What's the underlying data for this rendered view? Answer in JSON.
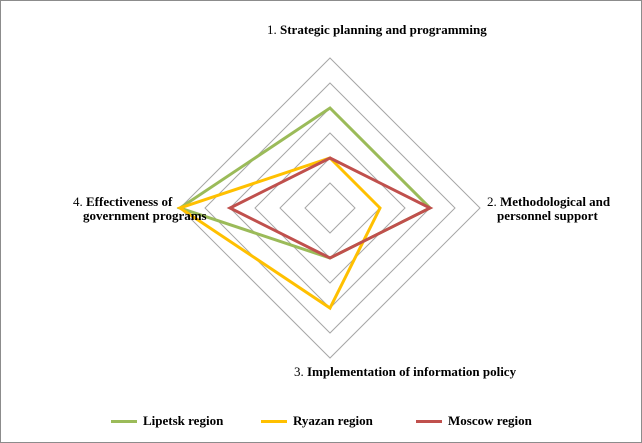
{
  "chart_data": {
    "type": "radar",
    "axes": [
      {
        "num": "1.",
        "label": "Strategic planning and programming"
      },
      {
        "num": "2.",
        "label": "Methodological and personnel support"
      },
      {
        "num": "3.",
        "label": "Implementation of information policy"
      },
      {
        "num": "4.",
        "label": "Effectiveness of government programs"
      }
    ],
    "axis_label_lines": {
      "a2": [
        "Methodological and",
        "personnel support"
      ],
      "a4": [
        "Effectiveness of",
        "government programs"
      ]
    },
    "range": [
      0,
      6
    ],
    "rings": 6,
    "grid": true,
    "legend_position": "bottom",
    "series": [
      {
        "name": "Lipetsk region",
        "color": "#9BBB59",
        "values": [
          4,
          4,
          2,
          6
        ]
      },
      {
        "name": "Ryazan region",
        "color": "#FFC000",
        "values": [
          2,
          2,
          4,
          6
        ]
      },
      {
        "name": "Moscow region",
        "color": "#C0504D",
        "values": [
          2,
          4,
          2,
          4
        ]
      }
    ]
  }
}
